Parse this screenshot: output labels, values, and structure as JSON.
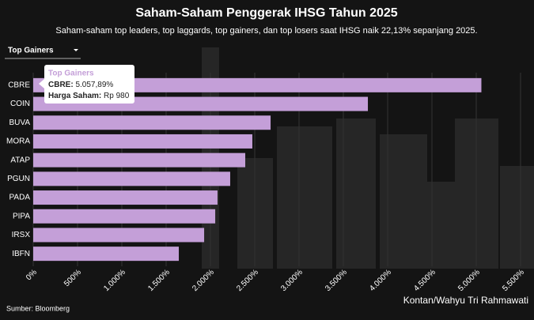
{
  "chart_data": {
    "type": "bar",
    "orientation": "horizontal",
    "title": "Saham-Saham Penggerak IHSG Tahun 2025",
    "subtitle": "Saham-saham top leaders, top laggards, top gainers, dan top losers saat IHSG naik 22,13% sepanjang 2025.",
    "dropdown": "Top Gainers",
    "categories": [
      "CBRE",
      "COIN",
      "BUVA",
      "MORA",
      "ATAP",
      "PGUN",
      "PADA",
      "PIPA",
      "IRSX",
      "IBFN"
    ],
    "values": [
      5057.89,
      3777,
      2679,
      2473,
      2393,
      2223,
      2080,
      2054,
      1929,
      1643
    ],
    "color": "#c49fd8",
    "xlim": [
      0,
      5500
    ],
    "xticks": [
      {
        "value": 0,
        "label": "0%"
      },
      {
        "value": 500,
        "label": "500%"
      },
      {
        "value": 1000,
        "label": "1.000%"
      },
      {
        "value": 1500,
        "label": "1.500%"
      },
      {
        "value": 2000,
        "label": "2.000%"
      },
      {
        "value": 2500,
        "label": "2.500%"
      },
      {
        "value": 3000,
        "label": "3.000%"
      },
      {
        "value": 3500,
        "label": "3.500%"
      },
      {
        "value": 4000,
        "label": "4.000%"
      },
      {
        "value": 4500,
        "label": "4.500%"
      },
      {
        "value": 5000,
        "label": "5.000%"
      },
      {
        "value": 5500,
        "label": "5.500%"
      }
    ],
    "grid": true,
    "tooltip": {
      "title": "Top Gainers",
      "rows": [
        {
          "label": "CBRE:",
          "value": "5.057,89%"
        },
        {
          "label": "Harga Saham:",
          "value": "Rp 980"
        }
      ]
    },
    "source": "Sumber: Bloomberg",
    "credit": "Kontan/Wahyu Tri Rahmawati"
  }
}
